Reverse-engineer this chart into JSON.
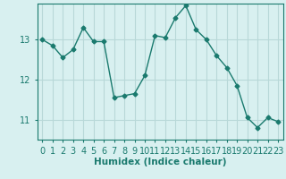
{
  "x": [
    0,
    1,
    2,
    3,
    4,
    5,
    6,
    7,
    8,
    9,
    10,
    11,
    12,
    13,
    14,
    15,
    16,
    17,
    18,
    19,
    20,
    21,
    22,
    23
  ],
  "y": [
    13.0,
    12.85,
    12.55,
    12.75,
    13.3,
    12.95,
    12.95,
    11.55,
    11.6,
    11.65,
    12.1,
    13.1,
    13.05,
    13.55,
    13.85,
    13.25,
    13.0,
    12.6,
    12.3,
    11.85,
    11.05,
    10.8,
    11.05,
    10.95
  ],
  "line_color": "#1a7a6e",
  "marker": "D",
  "marker_size": 2.5,
  "bg_color": "#d8f0f0",
  "grid_color": "#b8d8d8",
  "xlabel": "Humidex (Indice chaleur)",
  "xlim": [
    -0.5,
    23.5
  ],
  "ylim": [
    10.5,
    13.9
  ],
  "yticks": [
    11,
    12,
    13
  ],
  "label_fontsize": 7.5,
  "tick_fontsize": 7
}
